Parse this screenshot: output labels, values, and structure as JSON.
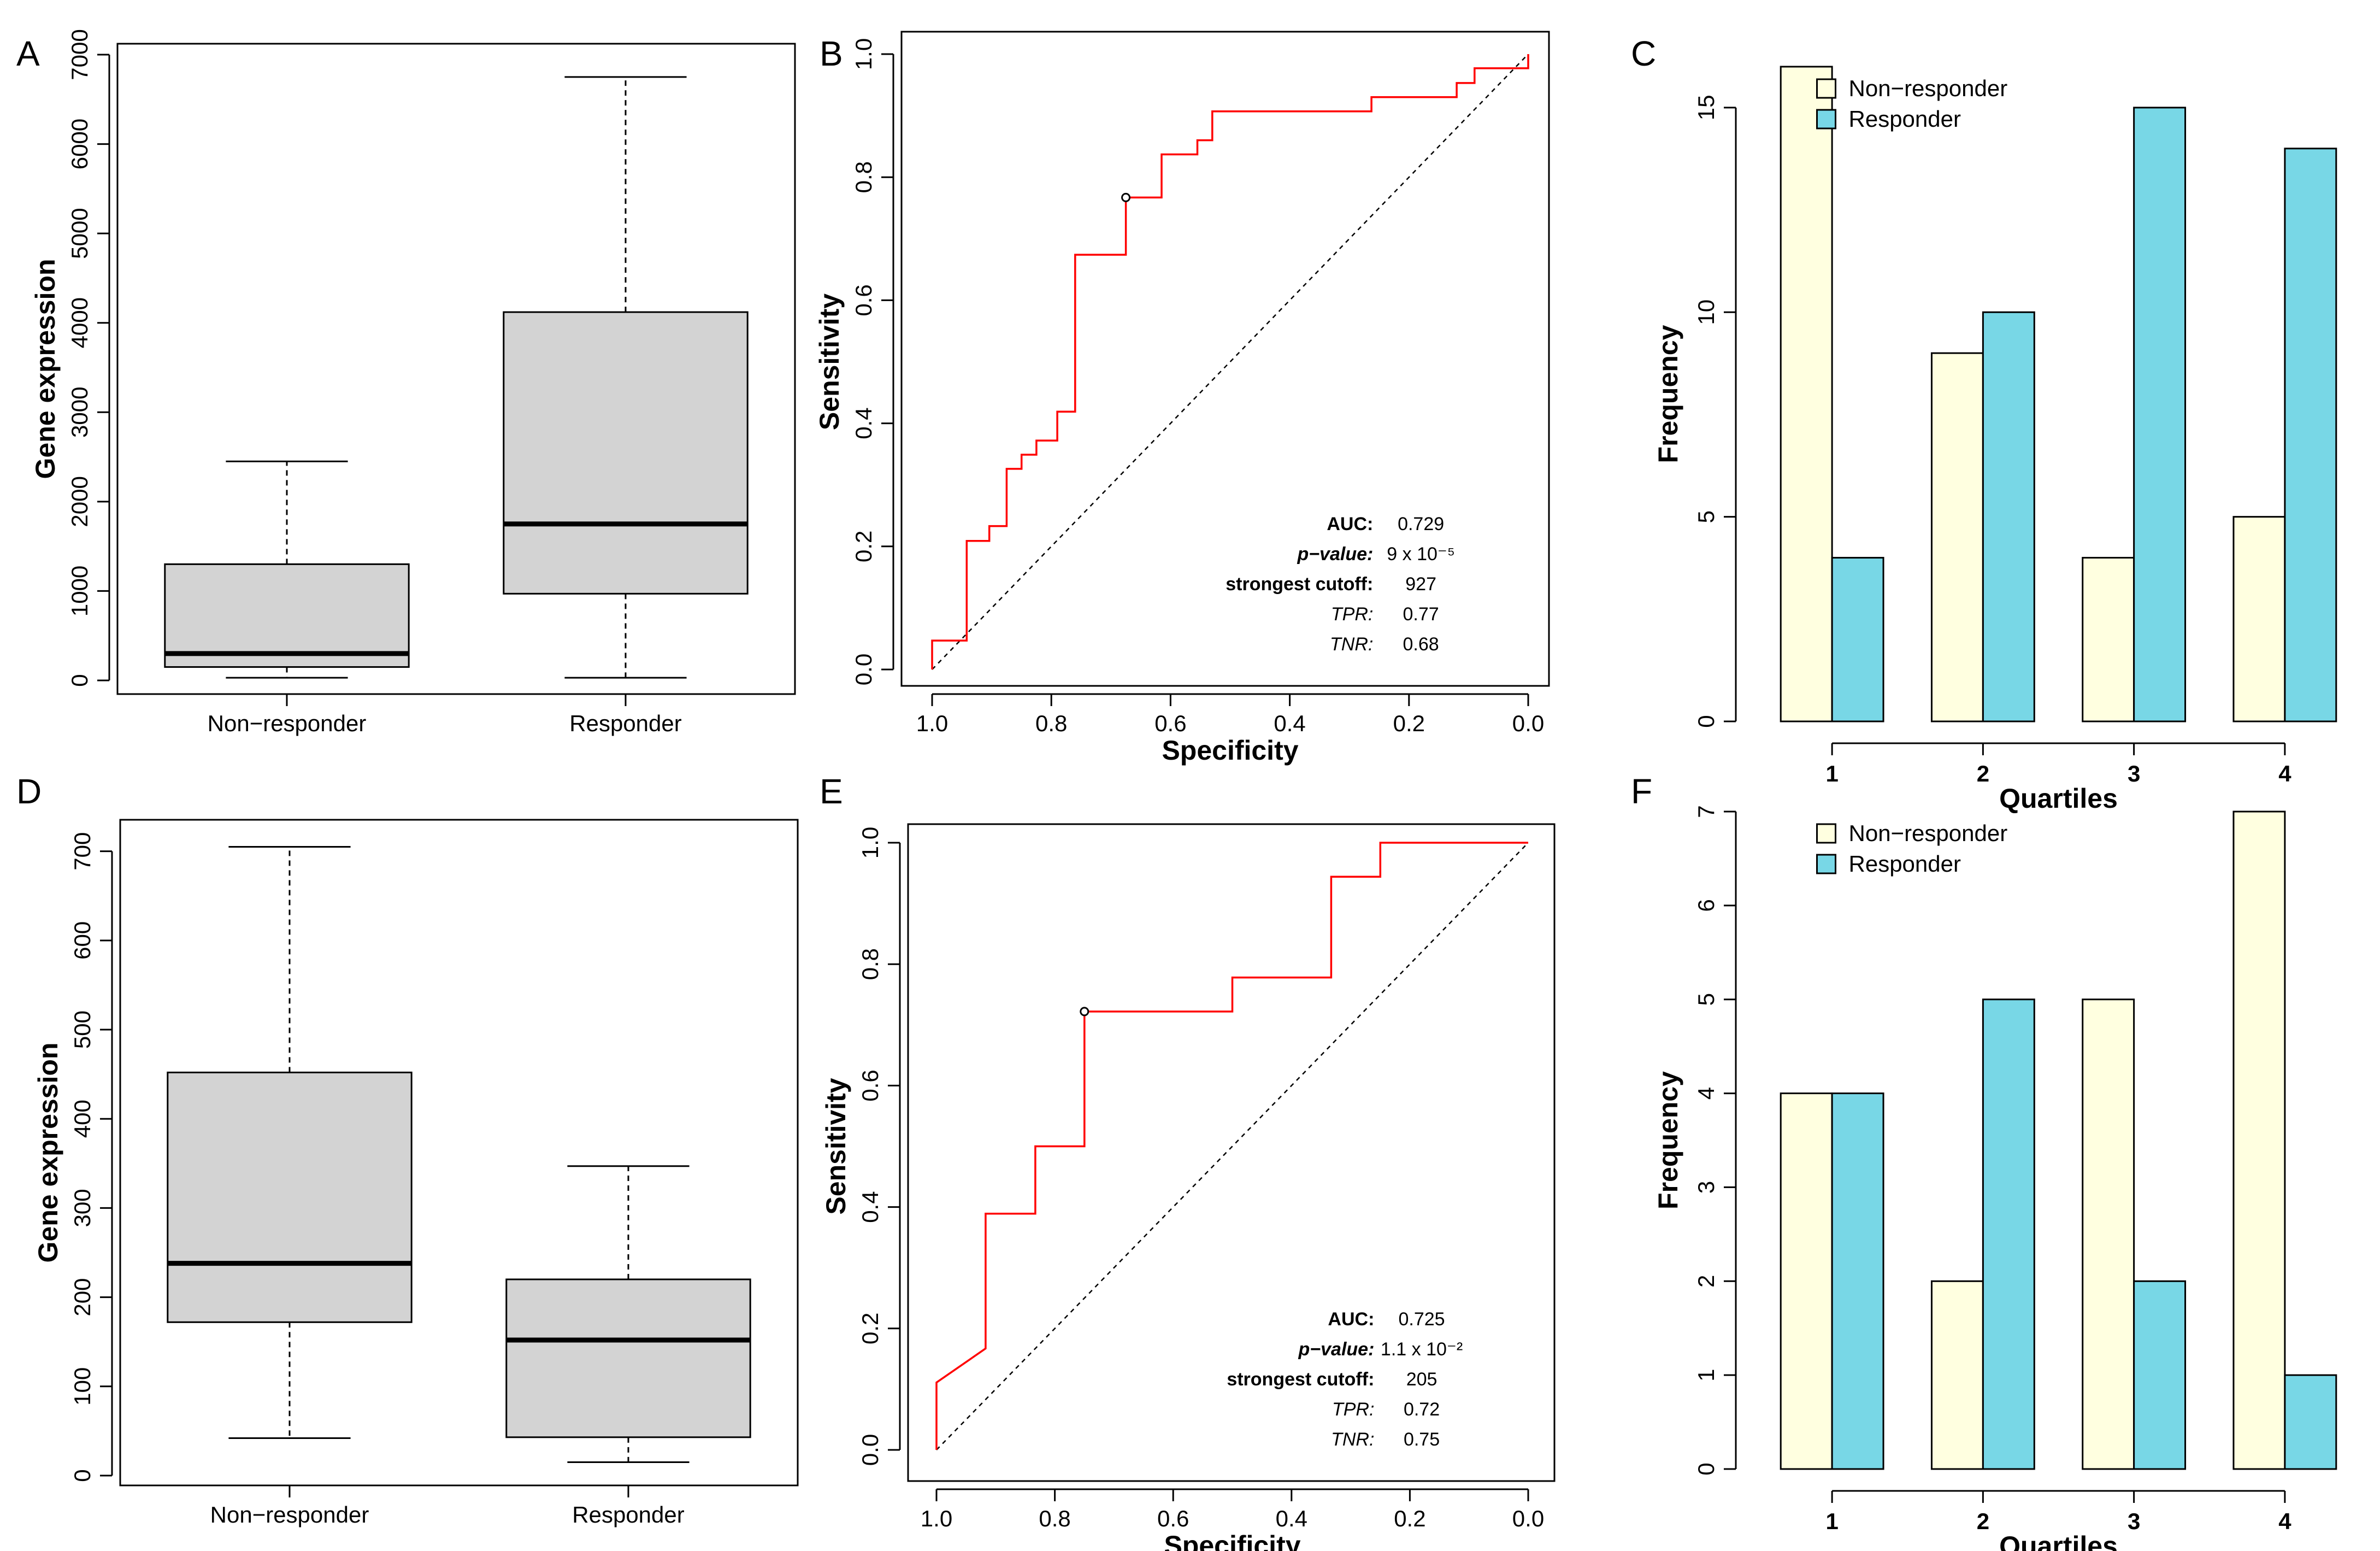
{
  "chart_data": [
    {
      "panel": "A",
      "type": "boxplot",
      "ylabel": "Gene expression",
      "categories": [
        "Non−responder",
        "Responder"
      ],
      "ylim": [
        0,
        7000
      ],
      "yticks": [
        "0",
        "1000",
        "2000",
        "3000",
        "4000",
        "5000",
        "6000",
        "7000"
      ],
      "boxes": [
        {
          "whisker_low": 30,
          "q1": 150,
          "median": 300,
          "q3": 1300,
          "whisker_high": 2450
        },
        {
          "whisker_low": 30,
          "q1": 970,
          "median": 1750,
          "q3": 4120,
          "whisker_high": 6750
        }
      ],
      "box_color": "#d3d3d3"
    },
    {
      "panel": "B",
      "type": "roc",
      "xlabel": "Specificity",
      "ylabel": "Sensitivity",
      "xlim": [
        1.0,
        0.0
      ],
      "ylim": [
        0.0,
        1.0
      ],
      "xticks": [
        "1.0",
        "0.8",
        "0.6",
        "0.4",
        "0.2",
        "0.0"
      ],
      "yticks": [
        "0.0",
        "0.2",
        "0.4",
        "0.6",
        "0.8",
        "1.0"
      ],
      "curve_color": "#ff0000",
      "curve": [
        [
          1.0,
          0.0
        ],
        [
          1.0,
          0.047
        ],
        [
          0.942,
          0.047
        ],
        [
          0.942,
          0.209
        ],
        [
          0.904,
          0.209
        ],
        [
          0.904,
          0.233
        ],
        [
          0.875,
          0.233
        ],
        [
          0.875,
          0.326
        ],
        [
          0.85,
          0.326
        ],
        [
          0.85,
          0.349
        ],
        [
          0.825,
          0.349
        ],
        [
          0.825,
          0.372
        ],
        [
          0.79,
          0.372
        ],
        [
          0.79,
          0.419
        ],
        [
          0.76,
          0.419
        ],
        [
          0.76,
          0.674
        ],
        [
          0.675,
          0.674
        ],
        [
          0.675,
          0.767
        ],
        [
          0.615,
          0.767
        ],
        [
          0.615,
          0.837
        ],
        [
          0.555,
          0.837
        ],
        [
          0.555,
          0.86
        ],
        [
          0.53,
          0.86
        ],
        [
          0.53,
          0.907
        ],
        [
          0.263,
          0.907
        ],
        [
          0.263,
          0.93
        ],
        [
          0.12,
          0.93
        ],
        [
          0.12,
          0.953
        ],
        [
          0.09,
          0.953
        ],
        [
          0.09,
          0.977
        ],
        [
          0.0,
          0.977
        ],
        [
          0.0,
          1.0
        ]
      ],
      "best_point": [
        0.675,
        0.767
      ],
      "stats": [
        {
          "label": "AUC:",
          "value": "0.729",
          "style": "bold"
        },
        {
          "label": "p−value:",
          "value": "9 x 10⁻⁵",
          "style": "bold-italic"
        },
        {
          "label": "strongest cutoff:",
          "value": "927",
          "style": "bold"
        },
        {
          "label": "TPR:",
          "value": "0.77",
          "style": "italic"
        },
        {
          "label": "TNR:",
          "value": "0.68",
          "style": "italic"
        }
      ]
    },
    {
      "panel": "C",
      "type": "bar",
      "xlabel": "Quartiles",
      "ylabel": "Frequency",
      "categories": [
        "1",
        "2",
        "3",
        "4"
      ],
      "ylim": [
        0,
        16
      ],
      "yticks": [
        "0",
        "5",
        "10",
        "15"
      ],
      "series": [
        {
          "name": "Non−responder",
          "values": [
            16,
            9,
            4,
            5
          ],
          "color": "#ffffe0"
        },
        {
          "name": "Responder",
          "values": [
            4,
            10,
            15,
            14
          ],
          "color": "#78d7e6"
        }
      ],
      "legend": "top-left"
    },
    {
      "panel": "D",
      "type": "boxplot",
      "ylabel": "Gene expression",
      "categories": [
        "Non−responder",
        "Responder"
      ],
      "ylim": [
        0,
        720
      ],
      "yticks": [
        "0",
        "100",
        "200",
        "300",
        "400",
        "500",
        "600",
        "700"
      ],
      "boxes": [
        {
          "whisker_low": 42,
          "q1": 172,
          "median": 238,
          "q3": 452,
          "whisker_high": 705
        },
        {
          "whisker_low": 15,
          "q1": 43,
          "median": 152,
          "q3": 220,
          "whisker_high": 347
        }
      ],
      "box_color": "#d3d3d3"
    },
    {
      "panel": "E",
      "type": "roc",
      "xlabel": "Specificity",
      "ylabel": "Sensitivity",
      "xlim": [
        1.0,
        0.0
      ],
      "ylim": [
        0.0,
        1.0
      ],
      "xticks": [
        "1.0",
        "0.8",
        "0.6",
        "0.4",
        "0.2",
        "0.0"
      ],
      "yticks": [
        "0.0",
        "0.2",
        "0.4",
        "0.6",
        "0.8",
        "1.0"
      ],
      "curve_color": "#ff0000",
      "curve": [
        [
          1.0,
          0.0
        ],
        [
          1.0,
          0.111
        ],
        [
          0.917,
          0.167
        ],
        [
          0.917,
          0.389
        ],
        [
          0.833,
          0.389
        ],
        [
          0.833,
          0.5
        ],
        [
          0.75,
          0.5
        ],
        [
          0.75,
          0.722
        ],
        [
          0.5,
          0.722
        ],
        [
          0.5,
          0.778
        ],
        [
          0.333,
          0.778
        ],
        [
          0.333,
          0.944
        ],
        [
          0.25,
          0.944
        ],
        [
          0.25,
          1.0
        ],
        [
          0.0,
          1.0
        ]
      ],
      "best_point": [
        0.75,
        0.722
      ],
      "stats": [
        {
          "label": "AUC:",
          "value": "0.725",
          "style": "bold"
        },
        {
          "label": "p−value:",
          "value": "1.1 x 10⁻²",
          "style": "bold-italic"
        },
        {
          "label": "strongest cutoff:",
          "value": "205",
          "style": "bold"
        },
        {
          "label": "TPR:",
          "value": "0.72",
          "style": "italic"
        },
        {
          "label": "TNR:",
          "value": "0.75",
          "style": "italic"
        }
      ]
    },
    {
      "panel": "F",
      "type": "bar",
      "xlabel": "Quartiles",
      "ylabel": "Frequency",
      "categories": [
        "1",
        "2",
        "3",
        "4"
      ],
      "ylim": [
        0,
        7
      ],
      "yticks": [
        "0",
        "1",
        "2",
        "3",
        "4",
        "5",
        "6",
        "7"
      ],
      "series": [
        {
          "name": "Non−responder",
          "values": [
            4,
            2,
            5,
            7
          ],
          "color": "#ffffe0"
        },
        {
          "name": "Responder",
          "values": [
            4,
            5,
            2,
            1
          ],
          "color": "#78d7e6"
        }
      ],
      "legend": "top-left"
    }
  ]
}
